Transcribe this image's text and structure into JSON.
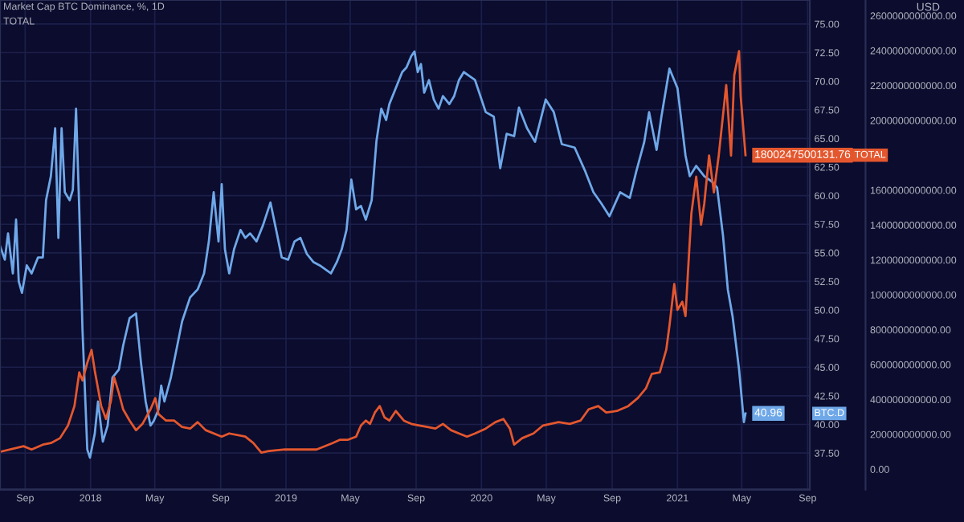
{
  "chart_data": {
    "type": "line",
    "title": "Market Cap BTC Dominance, %, 1D",
    "subtitle": "TOTAL",
    "y2label": "USD",
    "grid": true,
    "xlim": [
      "2017-07-16",
      "2021-09-05"
    ],
    "xticks": [
      {
        "value": "2017-09-01",
        "label": "Sep"
      },
      {
        "value": "2018-01-01",
        "label": "2018"
      },
      {
        "value": "2018-05-01",
        "label": "May"
      },
      {
        "value": "2018-09-01",
        "label": "Sep"
      },
      {
        "value": "2019-01-01",
        "label": "2019"
      },
      {
        "value": "2019-05-01",
        "label": "May"
      },
      {
        "value": "2019-09-01",
        "label": "Sep"
      },
      {
        "value": "2020-01-01",
        "label": "2020"
      },
      {
        "value": "2020-05-01",
        "label": "May"
      },
      {
        "value": "2020-09-01",
        "label": "Sep"
      },
      {
        "value": "2021-01-01",
        "label": "2021"
      },
      {
        "value": "2021-05-01",
        "label": "May"
      },
      {
        "value": "2021-09-01",
        "label": "Sep"
      }
    ],
    "ylim": [
      34.3,
      77.1
    ],
    "yticks": [
      {
        "value": 37.5,
        "label": "37.50"
      },
      {
        "value": 40,
        "label": "40.00"
      },
      {
        "value": 42.5,
        "label": "42.50"
      },
      {
        "value": 45,
        "label": "45.00"
      },
      {
        "value": 47.5,
        "label": "47.50"
      },
      {
        "value": 50,
        "label": "50.00"
      },
      {
        "value": 52.5,
        "label": "52.50"
      },
      {
        "value": 55,
        "label": "55.00"
      },
      {
        "value": 57.5,
        "label": "57.50"
      },
      {
        "value": 60,
        "label": "60.00"
      },
      {
        "value": 62.5,
        "label": "62.50"
      },
      {
        "value": 65,
        "label": "65.00"
      },
      {
        "value": 67.5,
        "label": "67.50"
      },
      {
        "value": 70,
        "label": "70.00"
      },
      {
        "value": 72.5,
        "label": "72.50"
      },
      {
        "value": 75,
        "label": "75.00"
      }
    ],
    "y2lim": [
      -117000000000,
      2690000000000
    ],
    "y2ticks": [
      {
        "value": 0,
        "label": "0.00"
      },
      {
        "value": 200000000000,
        "label": "200000000000.00"
      },
      {
        "value": 400000000000,
        "label": "400000000000.00"
      },
      {
        "value": 600000000000,
        "label": "600000000000.00"
      },
      {
        "value": 800000000000,
        "label": "800000000000.00"
      },
      {
        "value": 1000000000000,
        "label": "1000000000000.00"
      },
      {
        "value": 1200000000000,
        "label": "1200000000000.00"
      },
      {
        "value": 1400000000000,
        "label": "1400000000000.00"
      },
      {
        "value": 1600000000000,
        "label": "1600000000000.00"
      },
      {
        "value": 2000000000000,
        "label": "2000000000000.00"
      },
      {
        "value": 2200000000000,
        "label": "2200000000000.00"
      },
      {
        "value": 2400000000000,
        "label": "2400000000000.00"
      },
      {
        "value": 2600000000000,
        "label": "2600000000000.00"
      }
    ],
    "series": [
      {
        "name": "TOTAL",
        "color": "#e4572e",
        "axis": "y2",
        "x": [
          "2017-07-16",
          "2017-08-29",
          "2017-09-13",
          "2017-10-04",
          "2017-10-19",
          "2017-11-05",
          "2017-11-20",
          "2017-12-02",
          "2017-12-11",
          "2017-12-17",
          "2017-12-26",
          "2018-01-03",
          "2018-01-09",
          "2018-01-21",
          "2018-01-30",
          "2018-02-08",
          "2018-02-14",
          "2018-02-23",
          "2018-03-03",
          "2018-03-15",
          "2018-03-27",
          "2018-04-08",
          "2018-04-23",
          "2018-05-02",
          "2018-05-08",
          "2018-05-22",
          "2018-06-06",
          "2018-06-21",
          "2018-07-06",
          "2018-07-20",
          "2018-08-04",
          "2018-09-03",
          "2018-09-17",
          "2018-10-17",
          "2018-11-01",
          "2018-11-16",
          "2018-11-30",
          "2018-12-30",
          "2019-01-28",
          "2019-02-27",
          "2019-03-29",
          "2019-04-12",
          "2019-04-27",
          "2019-05-12",
          "2019-05-21",
          "2019-05-30",
          "2019-06-07",
          "2019-06-16",
          "2019-06-25",
          "2019-07-04",
          "2019-07-13",
          "2019-07-25",
          "2019-08-09",
          "2019-08-23",
          "2019-09-07",
          "2019-09-22",
          "2019-10-07",
          "2019-10-21",
          "2019-11-05",
          "2019-11-20",
          "2019-12-05",
          "2019-12-20",
          "2020-01-09",
          "2020-01-27",
          "2020-02-11",
          "2020-02-23",
          "2020-03-02",
          "2020-03-17",
          "2020-04-07",
          "2020-04-25",
          "2020-05-24",
          "2020-06-14",
          "2020-07-04",
          "2020-07-19",
          "2020-08-06",
          "2020-08-21",
          "2020-09-10",
          "2020-10-01",
          "2020-10-19",
          "2020-11-03",
          "2020-11-14",
          "2020-11-29",
          "2020-12-11",
          "2020-12-17",
          "2020-12-26",
          "2021-01-01",
          "2021-01-10",
          "2021-01-16",
          "2021-01-21",
          "2021-01-27",
          "2021-02-05",
          "2021-02-14",
          "2021-02-20",
          "2021-03-01",
          "2021-03-10",
          "2021-03-19",
          "2021-04-02",
          "2021-04-11",
          "2021-04-17",
          "2021-04-26",
          "2021-04-29",
          "2021-05-08"
        ],
        "values": [
          100000000000.0,
          132000000000.0,
          113000000000.0,
          141000000000.0,
          150000000000.0,
          178000000000.0,
          251000000000.0,
          362000000000.0,
          555000000000.0,
          509000000000.0,
          610000000000.0,
          684000000000.0,
          564000000000.0,
          362000000000.0,
          288000000000.0,
          390000000000.0,
          528000000000.0,
          436000000000.0,
          343000000000.0,
          279000000000.0,
          224000000000.0,
          260000000000.0,
          343000000000.0,
          408000000000.0,
          316000000000.0,
          279000000000.0,
          279000000000.0,
          242000000000.0,
          233000000000.0,
          270000000000.0,
          224000000000.0,
          187000000000.0,
          205000000000.0,
          187000000000.0,
          150000000000.0,
          95000000000.0,
          104000000000.0,
          113000000000.0,
          113000000000.0,
          113000000000.0,
          150000000000.0,
          169000000000.0,
          169000000000.0,
          187000000000.0,
          251000000000.0,
          279000000000.0,
          260000000000.0,
          325000000000.0,
          362000000000.0,
          297000000000.0,
          279000000000.0,
          334000000000.0,
          279000000000.0,
          260000000000.0,
          251000000000.0,
          242000000000.0,
          233000000000.0,
          260000000000.0,
          224000000000.0,
          205000000000.0,
          187000000000.0,
          205000000000.0,
          233000000000.0,
          270000000000.0,
          288000000000.0,
          233000000000.0,
          141000000000.0,
          178000000000.0,
          205000000000.0,
          251000000000.0,
          270000000000.0,
          260000000000.0,
          279000000000.0,
          343000000000.0,
          362000000000.0,
          325000000000.0,
          334000000000.0,
          362000000000.0,
          408000000000.0,
          463000000000.0,
          546000000000.0,
          555000000000.0,
          684000000000.0,
          822000000000.0,
          1062000000000.0,
          914000000000.0,
          960000000000.0,
          878000000000.0,
          1153000000000.0,
          1467000000000.0,
          1678000000000.0,
          1402000000000.0,
          1522000000000.0,
          1798000000000.0,
          1587000000000.0,
          1798000000000.0,
          2203000000000.0,
          1798000000000.0,
          2259000000000.0,
          2397000000000.0,
          2139000000000.0,
          1800247500131.76
        ],
        "value_labels": [
          null,
          null,
          null,
          null,
          null,
          null,
          null,
          null,
          null,
          null,
          null,
          null,
          null,
          null,
          null,
          null,
          null,
          null,
          null,
          null,
          null,
          null,
          null,
          null,
          null,
          null,
          null,
          null,
          null,
          null,
          null,
          null,
          null,
          null,
          null,
          null,
          null,
          null,
          null,
          null,
          null,
          null,
          null,
          null,
          null,
          null,
          null,
          null,
          null,
          null,
          null,
          null,
          null,
          null,
          null,
          null,
          null,
          null,
          null,
          null,
          null,
          null,
          null,
          null,
          null,
          null,
          null,
          null,
          null,
          null,
          null,
          null,
          null,
          null,
          null,
          null,
          null,
          null,
          null,
          null,
          null,
          null,
          null,
          null,
          null,
          null,
          null,
          null,
          null,
          null,
          null,
          null,
          null,
          null,
          null,
          null,
          null,
          null,
          null,
          null,
          null,
          "1800247500131.76"
        ]
      },
      {
        "name": "BTC.D",
        "color": "#6fa8e8",
        "axis": "y",
        "x": [
          "2017-07-16",
          "2017-07-25",
          "2017-07-31",
          "2017-08-09",
          "2017-08-15",
          "2017-08-20",
          "2017-08-26",
          "2017-09-04",
          "2017-09-13",
          "2017-09-25",
          "2017-10-04",
          "2017-10-10",
          "2017-10-19",
          "2017-10-27",
          "2017-11-02",
          "2017-11-08",
          "2017-11-14",
          "2017-11-23",
          "2017-11-29",
          "2017-12-05",
          "2017-12-11",
          "2017-12-17",
          "2017-12-26",
          "2017-12-31",
          "2018-01-09",
          "2018-01-15",
          "2018-01-24",
          "2018-02-02",
          "2018-02-11",
          "2018-02-23",
          "2018-03-03",
          "2018-03-15",
          "2018-03-27",
          "2018-04-05",
          "2018-04-14",
          "2018-04-23",
          "2018-04-29",
          "2018-05-08",
          "2018-05-13",
          "2018-05-19",
          "2018-05-31",
          "2018-06-12",
          "2018-06-21",
          "2018-07-06",
          "2018-07-20",
          "2018-08-01",
          "2018-08-10",
          "2018-08-19",
          "2018-08-28",
          "2018-09-03",
          "2018-09-09",
          "2018-09-17",
          "2018-09-26",
          "2018-10-08",
          "2018-10-17",
          "2018-10-26",
          "2018-11-07",
          "2018-11-19",
          "2018-12-03",
          "2018-12-15",
          "2018-12-24",
          "2019-01-05",
          "2019-01-17",
          "2019-01-28",
          "2019-02-09",
          "2019-02-21",
          "2019-03-05",
          "2019-03-17",
          "2019-03-26",
          "2019-04-06",
          "2019-04-15",
          "2019-04-24",
          "2019-05-03",
          "2019-05-12",
          "2019-05-21",
          "2019-05-30",
          "2019-06-10",
          "2019-06-19",
          "2019-06-28",
          "2019-07-07",
          "2019-07-13",
          "2019-07-25",
          "2019-08-06",
          "2019-08-14",
          "2019-08-23",
          "2019-08-29",
          "2019-09-04",
          "2019-09-10",
          "2019-09-16",
          "2019-09-25",
          "2019-10-04",
          "2019-10-13",
          "2019-10-21",
          "2019-11-02",
          "2019-11-11",
          "2019-11-20",
          "2019-11-29",
          "2019-12-11",
          "2019-12-20",
          "2020-01-09",
          "2020-01-24",
          "2020-02-05",
          "2020-02-17",
          "2020-03-02",
          "2020-03-11",
          "2020-03-26",
          "2020-04-10",
          "2020-04-30",
          "2020-05-15",
          "2020-05-30",
          "2020-06-23",
          "2020-07-13",
          "2020-07-28",
          "2020-08-12",
          "2020-08-27",
          "2020-09-16",
          "2020-10-04",
          "2020-10-16",
          "2020-10-31",
          "2020-11-09",
          "2020-11-23",
          "2020-12-02",
          "2020-12-17",
          "2021-01-01",
          "2021-01-16",
          "2021-01-24",
          "2021-02-05",
          "2021-02-20",
          "2021-03-07",
          "2021-03-16",
          "2021-03-27",
          "2021-04-05",
          "2021-04-14",
          "2021-04-26",
          "2021-05-05",
          "2021-05-08"
        ],
        "values": [
          55.6,
          54.4,
          56.7,
          53.2,
          57.9,
          52.5,
          51.5,
          53.9,
          53.2,
          54.6,
          54.6,
          59.6,
          61.7,
          65.9,
          56.3,
          65.9,
          60.3,
          59.6,
          60.5,
          67.6,
          58.8,
          48.3,
          37.8,
          37.1,
          39.2,
          42.0,
          38.5,
          39.9,
          44.1,
          44.8,
          46.9,
          49.3,
          49.7,
          45.5,
          42.0,
          39.9,
          40.3,
          41.3,
          43.4,
          42.0,
          44.1,
          46.9,
          49.0,
          51.1,
          51.8,
          53.2,
          56.0,
          60.3,
          56.0,
          61.0,
          55.3,
          53.2,
          55.3,
          57.0,
          56.3,
          56.7,
          56.0,
          57.4,
          59.4,
          56.7,
          54.6,
          54.4,
          56.0,
          56.3,
          54.9,
          54.2,
          53.9,
          53.5,
          53.2,
          54.2,
          55.3,
          57.0,
          61.4,
          58.8,
          59.1,
          57.9,
          59.6,
          64.8,
          67.6,
          66.6,
          68.0,
          69.4,
          70.8,
          71.2,
          72.2,
          72.6,
          70.8,
          71.5,
          69.0,
          70.1,
          68.4,
          67.6,
          68.7,
          68.0,
          68.7,
          70.1,
          70.8,
          70.4,
          70.1,
          67.3,
          66.9,
          62.4,
          65.4,
          65.2,
          67.7,
          65.9,
          64.7,
          68.4,
          67.3,
          64.5,
          64.2,
          62.1,
          60.3,
          59.3,
          58.2,
          60.3,
          59.8,
          62.1,
          64.7,
          67.3,
          64.0,
          66.9,
          71.1,
          69.4,
          63.5,
          61.7,
          62.6,
          61.7,
          61.2,
          60.7,
          56.5,
          51.8,
          49.4,
          44.8,
          40.2,
          40.96
        ],
        "value_labels": [
          null,
          null,
          null,
          null,
          null,
          null,
          null,
          null,
          null,
          null,
          null,
          null,
          null,
          null,
          null,
          null,
          null,
          null,
          null,
          null,
          null,
          null,
          null,
          null,
          null,
          null,
          null,
          null,
          null,
          null,
          null,
          null,
          null,
          null,
          null,
          null,
          null,
          null,
          null,
          null,
          null,
          null,
          null,
          null,
          null,
          null,
          null,
          null,
          null,
          null,
          null,
          null,
          null,
          null,
          null,
          null,
          null,
          null,
          null,
          null,
          null,
          null,
          null,
          null,
          null,
          null,
          null,
          null,
          null,
          null,
          null,
          null,
          null,
          null,
          null,
          null,
          null,
          null,
          null,
          null,
          null,
          null,
          null,
          null,
          null,
          null,
          null,
          null,
          null,
          null,
          null,
          null,
          null,
          null,
          null,
          null,
          null,
          null,
          null,
          null,
          null,
          null,
          null,
          null,
          null,
          null,
          null,
          null,
          null,
          null,
          null,
          null,
          null,
          null,
          null,
          null,
          null,
          null,
          null,
          null,
          null,
          null,
          null,
          null,
          null,
          null,
          null,
          null,
          null,
          null,
          null,
          null,
          null,
          null,
          null,
          "40.96"
        ]
      }
    ]
  }
}
